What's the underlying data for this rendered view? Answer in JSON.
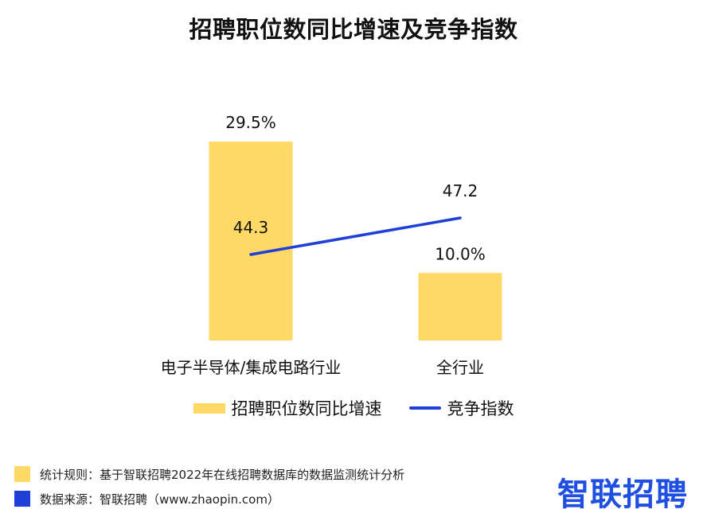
{
  "title": "招聘职位数同比增速及竞争指数",
  "chart_data": {
    "type": "bar",
    "categories": [
      "电子半导体/集成电路行业",
      "全行业"
    ],
    "series": [
      {
        "name": "招聘职位数同比增速",
        "type": "bar",
        "values": [
          29.5,
          10.0
        ],
        "labels": [
          "29.5%",
          "10.0%"
        ],
        "color": "#FFD966"
      },
      {
        "name": "竞争指数",
        "type": "line",
        "values": [
          44.3,
          47.2
        ],
        "labels": [
          "44.3",
          "47.2"
        ],
        "color": "#1E3FD8"
      }
    ],
    "grid": false,
    "legend": "bottom"
  },
  "notes": {
    "rule": "统计规则：基于智联招聘2022年在线招聘数据库的数据监测统计分析",
    "source": "数据来源：智联招聘（www.zhaopin.com）",
    "rule_color": "#FFD966",
    "source_color": "#1E3FD8"
  },
  "logo": "智联招聘"
}
